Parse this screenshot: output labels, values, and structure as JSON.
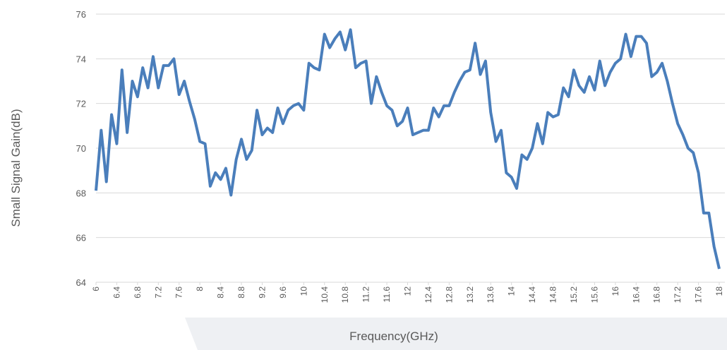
{
  "chart_data": {
    "type": "line",
    "xlabel": "Frequency(GHz)",
    "ylabel": "Small Signal Gain(dB)",
    "x": [
      6,
      6.1,
      6.2,
      6.3,
      6.4,
      6.5,
      6.6,
      6.7,
      6.8,
      6.9,
      7,
      7.1,
      7.2,
      7.3,
      7.4,
      7.5,
      7.6,
      7.7,
      7.8,
      7.9,
      8,
      8.1,
      8.2,
      8.3,
      8.4,
      8.5,
      8.6,
      8.7,
      8.8,
      8.9,
      9,
      9.1,
      9.2,
      9.3,
      9.4,
      9.5,
      9.6,
      9.7,
      9.8,
      9.9,
      10,
      10.1,
      10.2,
      10.3,
      10.4,
      10.5,
      10.6,
      10.7,
      10.8,
      10.9,
      11,
      11.1,
      11.2,
      11.3,
      11.4,
      11.5,
      11.6,
      11.7,
      11.8,
      11.9,
      12,
      12.1,
      12.2,
      12.3,
      12.4,
      12.5,
      12.6,
      12.7,
      12.8,
      12.9,
      13,
      13.1,
      13.2,
      13.3,
      13.4,
      13.5,
      13.6,
      13.7,
      13.8,
      13.9,
      14,
      14.1,
      14.2,
      14.3,
      14.4,
      14.5,
      14.6,
      14.7,
      14.8,
      14.9,
      15,
      15.1,
      15.2,
      15.3,
      15.4,
      15.5,
      15.6,
      15.7,
      15.8,
      15.9,
      16,
      16.1,
      16.2,
      16.3,
      16.4,
      16.5,
      16.6,
      16.7,
      16.8,
      16.9,
      17,
      17.1,
      17.2,
      17.3,
      17.4,
      17.5,
      17.6,
      17.7,
      17.8,
      17.9,
      18
    ],
    "series": [
      {
        "name": "Small Signal Gain",
        "color": "#4a7ebb",
        "values": [
          68.1,
          70.8,
          68.5,
          71.5,
          70.2,
          73.5,
          70.7,
          73.0,
          72.3,
          73.6,
          72.7,
          74.1,
          72.7,
          73.7,
          73.7,
          74.0,
          72.4,
          73.0,
          72.1,
          71.3,
          70.3,
          70.2,
          68.3,
          68.9,
          68.6,
          69.1,
          67.9,
          69.5,
          70.4,
          69.5,
          69.9,
          71.7,
          70.6,
          70.9,
          70.7,
          71.8,
          71.1,
          71.7,
          71.9,
          72.0,
          71.7,
          73.8,
          73.6,
          73.5,
          75.1,
          74.5,
          74.9,
          75.2,
          74.4,
          75.3,
          73.6,
          73.8,
          73.9,
          72.0,
          73.2,
          72.5,
          71.9,
          71.7,
          71.0,
          71.2,
          71.8,
          70.6,
          70.7,
          70.8,
          70.8,
          71.8,
          71.4,
          71.9,
          71.9,
          72.5,
          73.0,
          73.4,
          73.5,
          74.7,
          73.3,
          73.9,
          71.6,
          70.3,
          70.8,
          68.9,
          68.7,
          68.2,
          69.7,
          69.5,
          70.0,
          71.1,
          70.2,
          71.6,
          71.4,
          71.5,
          72.7,
          72.3,
          73.5,
          72.8,
          72.5,
          73.2,
          72.6,
          73.9,
          72.8,
          73.4,
          73.8,
          74.0,
          75.1,
          74.1,
          75.0,
          75.0,
          74.7,
          73.2,
          73.4,
          73.8,
          73.0,
          72.0,
          71.1,
          70.6,
          70.0,
          69.8,
          68.9,
          67.1,
          67.1,
          65.6,
          64.6
        ]
      }
    ],
    "xlim": [
      6,
      18
    ],
    "xticks": [
      6,
      6.4,
      6.8,
      7.2,
      7.6,
      8,
      8.4,
      8.8,
      9.2,
      9.6,
      10,
      10.4,
      10.8,
      11.2,
      11.6,
      12,
      12.4,
      12.8,
      13.2,
      13.6,
      14,
      14.4,
      14.8,
      15.2,
      15.6,
      16,
      16.4,
      16.8,
      17.2,
      17.6,
      18
    ],
    "ylim": [
      64,
      76
    ],
    "yticks": [
      64,
      66,
      68,
      70,
      72,
      74,
      76
    ],
    "grid": true
  }
}
